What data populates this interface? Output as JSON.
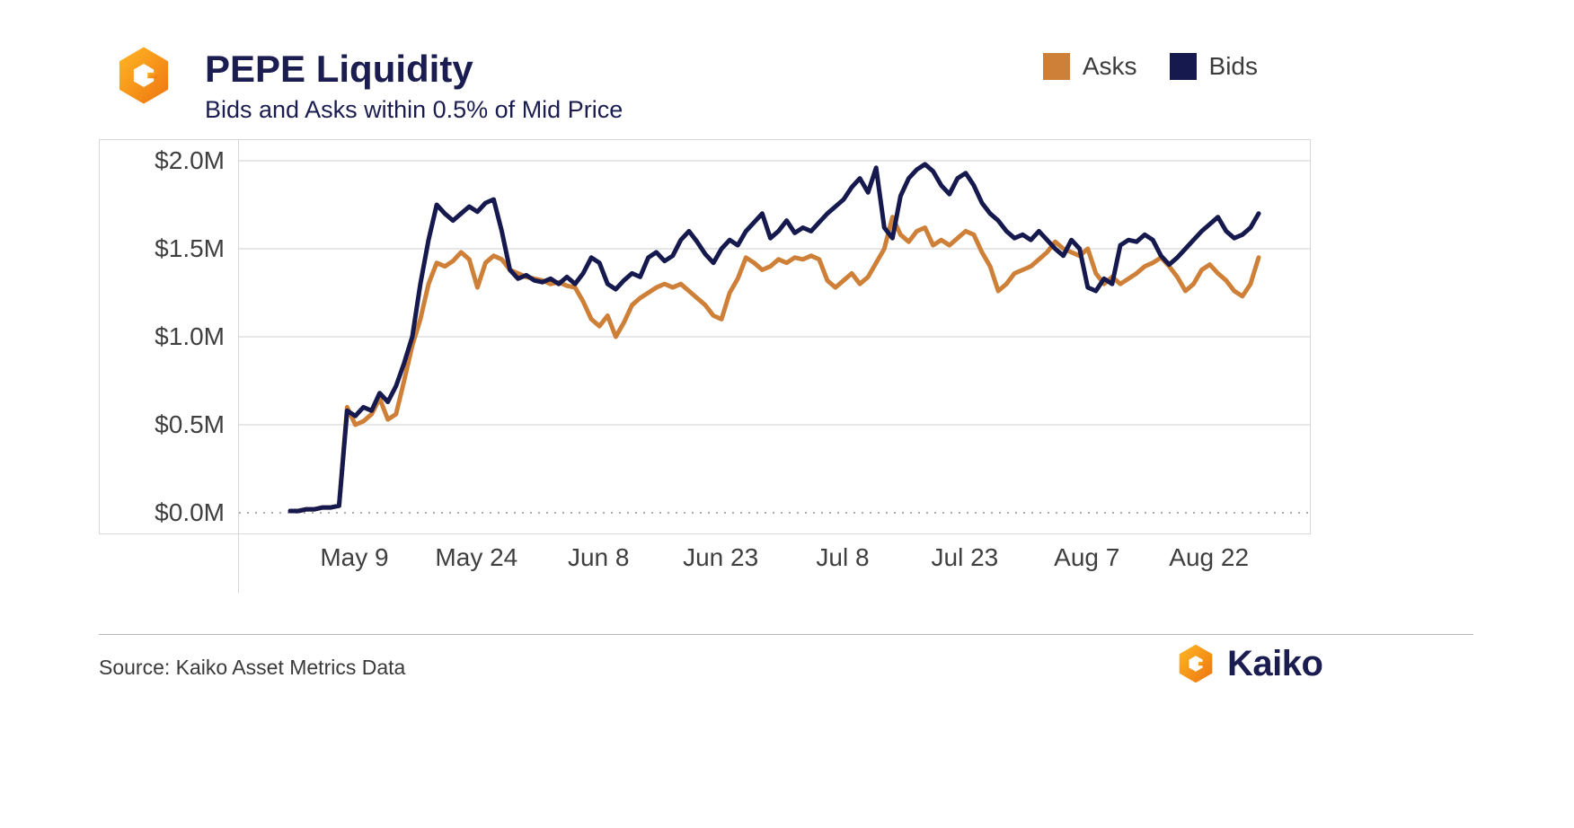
{
  "header": {
    "title": "PEPE Liquidity",
    "subtitle": "Bids and Asks within 0.5% of Mid Price"
  },
  "legend": [
    {
      "label": "Asks",
      "color": "#ce8038"
    },
    {
      "label": "Bids",
      "color": "#15194e"
    }
  ],
  "footer": {
    "source": "Source: Kaiko Asset Metrics Data",
    "brand": "Kaiko"
  },
  "colors": {
    "asks": "#ce8038",
    "bids": "#15194e",
    "title_navy": "#1b1c4f",
    "gridline": "#e7e7e7",
    "zero_line": "#ababab",
    "frame_border": "#d8d8d8"
  },
  "chart_data": {
    "type": "line",
    "title": "PEPE Liquidity",
    "subtitle": "Bids and Asks within 0.5% of Mid Price",
    "unit": "$M",
    "grid": true,
    "zero_line_dashed": true,
    "legend_position": "top-right",
    "ylim": [
      0,
      2.12
    ],
    "y_ticks": [
      0,
      0.5,
      1.0,
      1.5,
      2.0
    ],
    "y_tick_labels": [
      "$0.0M",
      "$0.5M",
      "$1.0M",
      "$1.5M",
      "$2.0M"
    ],
    "x_tick_labels": [
      "May 9",
      "May 24",
      "Jun 8",
      "Jun 23",
      "Jul 8",
      "Jul 23",
      "Aug 7",
      "Aug 22"
    ],
    "x_tick_indexes": [
      8,
      23,
      38,
      53,
      68,
      83,
      98,
      113
    ],
    "x": [
      "May 1",
      "May 2",
      "May 3",
      "May 4",
      "May 5",
      "May 6",
      "May 7",
      "May 8",
      "May 9",
      "May 10",
      "May 11",
      "May 12",
      "May 13",
      "May 14",
      "May 15",
      "May 16",
      "May 17",
      "May 18",
      "May 19",
      "May 20",
      "May 21",
      "May 22",
      "May 23",
      "May 24",
      "May 25",
      "May 26",
      "May 27",
      "May 28",
      "May 29",
      "May 30",
      "May 31",
      "Jun 1",
      "Jun 2",
      "Jun 3",
      "Jun 4",
      "Jun 5",
      "Jun 6",
      "Jun 7",
      "Jun 8",
      "Jun 9",
      "Jun 10",
      "Jun 11",
      "Jun 12",
      "Jun 13",
      "Jun 14",
      "Jun 15",
      "Jun 16",
      "Jun 17",
      "Jun 18",
      "Jun 19",
      "Jun 20",
      "Jun 21",
      "Jun 22",
      "Jun 23",
      "Jun 24",
      "Jun 25",
      "Jun 26",
      "Jun 27",
      "Jun 28",
      "Jun 29",
      "Jun 30",
      "Jul 1",
      "Jul 2",
      "Jul 3",
      "Jul 4",
      "Jul 5",
      "Jul 6",
      "Jul 7",
      "Jul 8",
      "Jul 9",
      "Jul 10",
      "Jul 11",
      "Jul 12",
      "Jul 13",
      "Jul 14",
      "Jul 15",
      "Jul 16",
      "Jul 17",
      "Jul 18",
      "Jul 19",
      "Jul 20",
      "Jul 21",
      "Jul 22",
      "Jul 23",
      "Jul 24",
      "Jul 25",
      "Jul 26",
      "Jul 27",
      "Jul 28",
      "Jul 29",
      "Jul 30",
      "Jul 31",
      "Aug 1",
      "Aug 2",
      "Aug 3",
      "Aug 4",
      "Aug 5",
      "Aug 6",
      "Aug 7",
      "Aug 8",
      "Aug 9",
      "Aug 10",
      "Aug 11",
      "Aug 12",
      "Aug 13",
      "Aug 14",
      "Aug 15",
      "Aug 16",
      "Aug 17",
      "Aug 18",
      "Aug 19",
      "Aug 20",
      "Aug 21",
      "Aug 22",
      "Aug 23",
      "Aug 24",
      "Aug 25",
      "Aug 26",
      "Aug 27",
      "Aug 28"
    ],
    "series": [
      {
        "name": "Asks",
        "color": "#ce8038",
        "values": [
          0.01,
          0.01,
          0.02,
          0.02,
          0.03,
          0.03,
          0.04,
          0.6,
          0.5,
          0.52,
          0.56,
          0.65,
          0.53,
          0.56,
          0.75,
          0.95,
          1.1,
          1.3,
          1.42,
          1.4,
          1.43,
          1.48,
          1.44,
          1.28,
          1.42,
          1.46,
          1.44,
          1.38,
          1.36,
          1.34,
          1.33,
          1.32,
          1.3,
          1.31,
          1.29,
          1.28,
          1.2,
          1.1,
          1.06,
          1.12,
          1.0,
          1.08,
          1.18,
          1.22,
          1.25,
          1.28,
          1.3,
          1.28,
          1.3,
          1.26,
          1.22,
          1.18,
          1.12,
          1.1,
          1.25,
          1.33,
          1.45,
          1.42,
          1.38,
          1.4,
          1.44,
          1.42,
          1.45,
          1.44,
          1.46,
          1.44,
          1.32,
          1.28,
          1.32,
          1.36,
          1.3,
          1.34,
          1.42,
          1.5,
          1.68,
          1.58,
          1.54,
          1.6,
          1.62,
          1.52,
          1.55,
          1.52,
          1.56,
          1.6,
          1.58,
          1.48,
          1.4,
          1.26,
          1.3,
          1.36,
          1.38,
          1.4,
          1.44,
          1.48,
          1.54,
          1.5,
          1.48,
          1.46,
          1.5,
          1.36,
          1.3,
          1.34,
          1.3,
          1.33,
          1.36,
          1.4,
          1.42,
          1.45,
          1.4,
          1.34,
          1.26,
          1.3,
          1.38,
          1.41,
          1.36,
          1.32,
          1.26,
          1.23,
          1.3,
          1.45
        ]
      },
      {
        "name": "Bids",
        "color": "#15194e",
        "values": [
          0.01,
          0.01,
          0.02,
          0.02,
          0.03,
          0.03,
          0.04,
          0.58,
          0.55,
          0.6,
          0.58,
          0.68,
          0.63,
          0.72,
          0.85,
          1.0,
          1.3,
          1.55,
          1.75,
          1.7,
          1.66,
          1.7,
          1.74,
          1.71,
          1.76,
          1.78,
          1.6,
          1.38,
          1.33,
          1.35,
          1.32,
          1.31,
          1.33,
          1.3,
          1.34,
          1.3,
          1.36,
          1.45,
          1.42,
          1.3,
          1.27,
          1.32,
          1.36,
          1.34,
          1.45,
          1.48,
          1.43,
          1.46,
          1.55,
          1.6,
          1.54,
          1.47,
          1.42,
          1.5,
          1.55,
          1.52,
          1.6,
          1.65,
          1.7,
          1.56,
          1.6,
          1.66,
          1.59,
          1.62,
          1.6,
          1.65,
          1.7,
          1.74,
          1.78,
          1.85,
          1.9,
          1.82,
          1.96,
          1.62,
          1.56,
          1.8,
          1.9,
          1.95,
          1.98,
          1.94,
          1.86,
          1.81,
          1.9,
          1.93,
          1.86,
          1.76,
          1.7,
          1.66,
          1.6,
          1.56,
          1.58,
          1.55,
          1.6,
          1.55,
          1.5,
          1.46,
          1.55,
          1.5,
          1.28,
          1.26,
          1.33,
          1.3,
          1.52,
          1.55,
          1.54,
          1.58,
          1.55,
          1.46,
          1.41,
          1.45,
          1.5,
          1.55,
          1.6,
          1.64,
          1.68,
          1.6,
          1.56,
          1.58,
          1.62,
          1.7
        ]
      }
    ]
  }
}
